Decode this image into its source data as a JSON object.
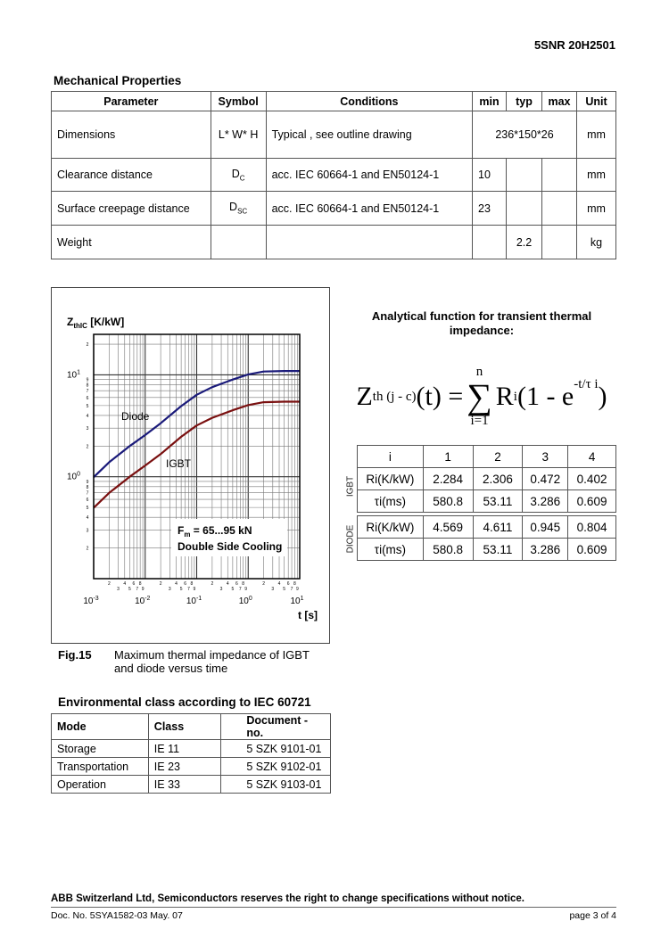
{
  "header": {
    "doc_id": "5SNR 20H2501"
  },
  "mechanical": {
    "title": "Mechanical Properties",
    "columns": [
      "Parameter",
      "Symbol",
      "Conditions",
      "min",
      "typ",
      "max",
      "Unit"
    ],
    "dimensions": {
      "parameter": "Dimensions",
      "symbol": "L* W* H",
      "conditions": "Typical , see outline drawing",
      "value": "236*150*26",
      "unit": "mm"
    },
    "clearance": {
      "parameter": "Clearance distance",
      "symbol": "D",
      "symbol_sub": "C",
      "conditions": "acc. IEC 60664-1 and EN50124-1",
      "min": "10",
      "unit": "mm"
    },
    "creepage": {
      "parameter": "Surface creepage distance",
      "symbol": "D",
      "symbol_sub": "SC",
      "conditions": "acc. IEC 60664-1 and EN50124-1",
      "min": "23",
      "unit": "mm"
    },
    "weight": {
      "parameter": "Weight",
      "typ": "2.2",
      "unit": "kg"
    }
  },
  "chart_data": {
    "type": "line",
    "ylabel_main": "Z",
    "ylabel_sub": "thIC",
    "ylabel_unit": " [K/kW]",
    "xlabel": "t [s]",
    "x_scale": "log",
    "y_scale": "log",
    "xlim": [
      0.001,
      10
    ],
    "ylim": [
      0.1,
      25
    ],
    "grid": true,
    "x_decade_exponents": [
      "-3",
      "-2",
      "-1",
      "0",
      "1"
    ],
    "y_decade_exponents": [
      "0",
      "1"
    ],
    "minor_labels": [
      "2",
      "3",
      "4",
      "5",
      "6",
      "7",
      "8",
      "9"
    ],
    "annotation_force": "F",
    "annotation_force_sub": "m",
    "annotation_force_value": " = 65...95 kN",
    "annotation_cooling": "Double Side Cooling",
    "x": [
      0.001,
      0.002,
      0.005,
      0.01,
      0.02,
      0.05,
      0.1,
      0.2,
      0.5,
      1,
      2,
      5,
      10
    ],
    "series": [
      {
        "name": "Diode",
        "color": "#1a1a7a",
        "values": [
          0.99,
          1.39,
          2.0,
          2.57,
          3.35,
          4.94,
          6.38,
          7.59,
          9.0,
          10.11,
          10.78,
          10.93,
          10.93
        ]
      },
      {
        "name": "IGBT",
        "color": "#7a1010",
        "values": [
          0.495,
          0.695,
          1.0,
          1.29,
          1.67,
          2.47,
          3.19,
          3.79,
          4.5,
          5.06,
          5.39,
          5.46,
          5.46
        ]
      }
    ]
  },
  "figure": {
    "label": "Fig.15",
    "caption_line1": "Maximum thermal impedance of IGBT",
    "caption_line2": "and diode versus time"
  },
  "analytical": {
    "title_line1": "Analytical function for transient thermal",
    "title_line2": "impedance:",
    "formula_lhs": "Z",
    "formula_lhs_sub": "th (j - c)",
    "formula_t": "(t) = ",
    "sum_top": "n",
    "sum_bottom": "i=1",
    "formula_r": "R",
    "formula_r_sub": "i",
    "formula_paren": "(1 - e",
    "formula_exp": "-t/τ i",
    "formula_close": ")",
    "header": [
      "i",
      "1",
      "2",
      "3",
      "4"
    ],
    "igbt_label": "IGBT",
    "diode_label": "DIODE",
    "igbt": [
      {
        "label": "Ri(K/kW)",
        "values": [
          "2.284",
          "2.306",
          "0.472",
          "0.402"
        ]
      },
      {
        "label": "τi(ms)",
        "values": [
          "580.8",
          "53.11",
          "3.286",
          "0.609"
        ]
      }
    ],
    "diode": [
      {
        "label": "Ri(K/kW)",
        "values": [
          "4.569",
          "4.611",
          "0.945",
          "0.804"
        ]
      },
      {
        "label": "τi(ms)",
        "values": [
          "580.8",
          "53.11",
          "3.286",
          "0.609"
        ]
      }
    ]
  },
  "environmental": {
    "title": "Environmental class according to IEC 60721",
    "columns": [
      "Mode",
      "Class",
      "Document - no."
    ],
    "rows": [
      [
        "Storage",
        "IE 11",
        "5 SZK 9101-01"
      ],
      [
        "Transportation",
        "IE 23",
        "5 SZK 9102-01"
      ],
      [
        "Operation",
        "IE 33",
        "5 SZK 9103-01"
      ]
    ]
  },
  "footer": {
    "disclaimer": "ABB Switzerland Ltd, Semiconductors reserves the right to change specifications without notice.",
    "doc_no": "Doc. No. 5SYA1582-03 May. 07",
    "page": "page 3 of 4"
  }
}
